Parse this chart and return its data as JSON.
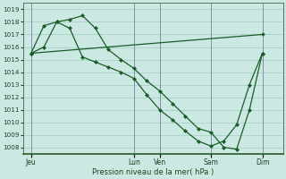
{
  "background_color": "#cce8e2",
  "grid_color": "#aad4cc",
  "line_color": "#1a5c28",
  "vline_color": "#7a7a9a",
  "xlabel": "Pression niveau de la mer( hPa )",
  "ylim": [
    1007.5,
    1019.5
  ],
  "yticks": [
    1008,
    1009,
    1010,
    1011,
    1012,
    1013,
    1014,
    1015,
    1016,
    1017,
    1018,
    1019
  ],
  "day_labels": [
    "Jeu",
    "Lun",
    "Ven",
    "Sam",
    "Dim"
  ],
  "day_positions": [
    0.0,
    4.0,
    5.0,
    7.0,
    9.0
  ],
  "xlim": [
    -0.3,
    9.8
  ],
  "line1_x": [
    0.0,
    9.0
  ],
  "line1_y": [
    1015.5,
    1017.0
  ],
  "line2_x": [
    0.0,
    0.5,
    1.0,
    1.5,
    2.0,
    2.5,
    3.0,
    3.5,
    4.0,
    4.5,
    5.0,
    5.5,
    6.0,
    6.5,
    7.0,
    7.5,
    8.0,
    8.5,
    9.0
  ],
  "line2_y": [
    1015.5,
    1017.7,
    1018.0,
    1018.2,
    1018.5,
    1017.5,
    1015.8,
    1015.0,
    1014.3,
    1013.3,
    1012.5,
    1011.5,
    1010.5,
    1009.5,
    1009.2,
    1008.0,
    1007.85,
    1011.0,
    1015.5
  ],
  "line3_x": [
    0.0,
    0.5,
    1.0,
    1.5,
    2.0,
    2.5,
    3.0,
    3.5,
    4.0,
    4.5,
    5.0,
    5.5,
    6.0,
    6.5,
    7.0,
    7.5,
    8.0,
    8.5,
    9.0
  ],
  "line3_y": [
    1015.5,
    1016.0,
    1018.0,
    1017.5,
    1015.2,
    1014.8,
    1014.4,
    1014.0,
    1013.5,
    1012.2,
    1011.0,
    1010.2,
    1009.3,
    1008.5,
    1008.1,
    1008.5,
    1009.8,
    1013.0,
    1015.5
  ]
}
